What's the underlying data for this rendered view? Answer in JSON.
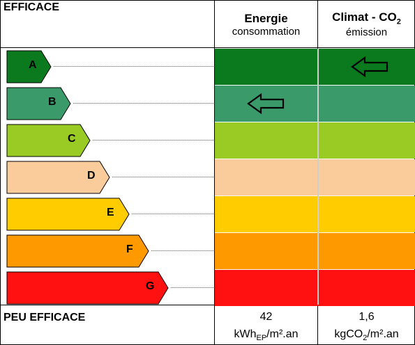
{
  "header": {
    "left_label": "EFFICACE",
    "energy_title": "Energie",
    "energy_subtitle": "consommation",
    "climate_title": "Climat - CO",
    "climate_title_sub": "2",
    "climate_subtitle": "émission"
  },
  "footer": {
    "left_label": "PEU EFFICACE",
    "energy_value": "42",
    "energy_unit_pre": "kWh",
    "energy_unit_sub": "EP",
    "energy_unit_post": "/m².an",
    "climate_value": "1,6",
    "climate_unit_pre": "kgCO",
    "climate_unit_sub": "2",
    "climate_unit_post": "/m².an"
  },
  "ratings": [
    {
      "letter": "A",
      "color": "#0b7a1e"
    },
    {
      "letter": "B",
      "color": "#3a9a6a"
    },
    {
      "letter": "C",
      "color": "#9acb25"
    },
    {
      "letter": "D",
      "color": "#fbcc9b"
    },
    {
      "letter": "E",
      "color": "#ffcc00"
    },
    {
      "letter": "F",
      "color": "#ff9900"
    },
    {
      "letter": "G",
      "color": "#ff1111"
    }
  ],
  "indicators": {
    "energy_class": "B",
    "climate_class": "A"
  }
}
